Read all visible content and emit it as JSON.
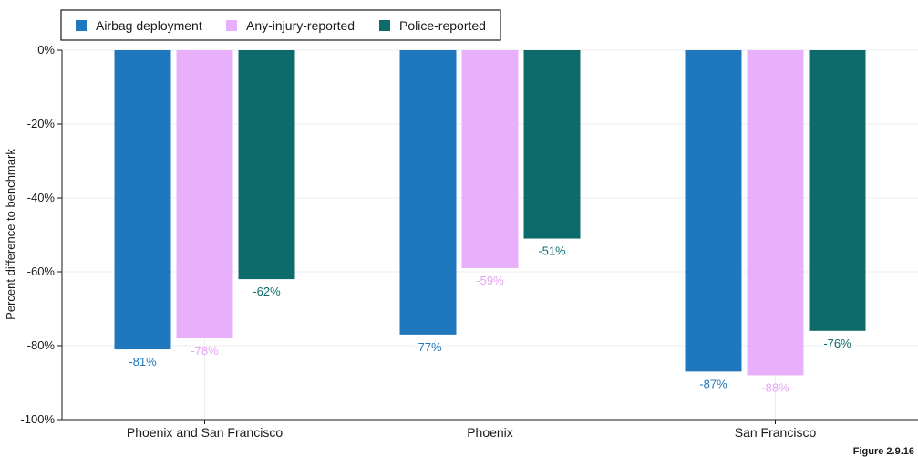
{
  "chart_data": {
    "type": "bar",
    "categories": [
      "Phoenix and San Francisco",
      "Phoenix",
      "San Francisco"
    ],
    "series": [
      {
        "name": "Airbag deployment",
        "color": "#1f77bd",
        "label_color": "#1f77bd",
        "values": [
          -81,
          -77,
          -87
        ]
      },
      {
        "name": "Any-injury-reported",
        "color": "#e8b0fb",
        "label_color": "#e6a2f7",
        "values": [
          -78,
          -59,
          -88
        ]
      },
      {
        "name": "Police-reported",
        "color": "#0e6b6b",
        "label_color": "#0e6b6b",
        "values": [
          -62,
          -51,
          -76
        ]
      }
    ],
    "data_labels": [
      [
        "-81%",
        "-77%",
        "-87%"
      ],
      [
        "-78%",
        "-59%",
        "-88%"
      ],
      [
        "-62%",
        "-51%",
        "-76%"
      ]
    ],
    "ylabel": "Percent difference to benchmark",
    "ylim": [
      -100,
      0
    ],
    "yticks": [
      0,
      -20,
      -40,
      -60,
      -80,
      -100
    ],
    "ytick_labels": [
      "0%",
      "-20%",
      "-40%",
      "-60%",
      "-80%",
      "-100%"
    ],
    "grid": true,
    "legend_position": "top-left",
    "figure_label": "Figure 2.9.16"
  }
}
